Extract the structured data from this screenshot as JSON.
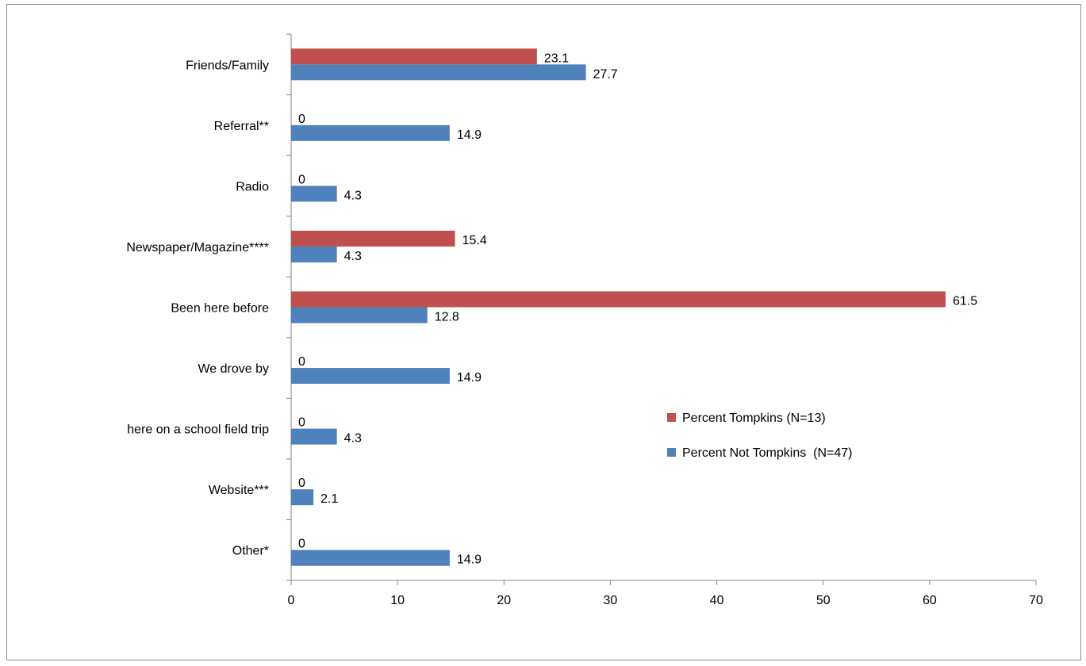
{
  "chart_data": {
    "type": "bar",
    "orientation": "horizontal",
    "title": "",
    "xlabel": "",
    "ylabel": "",
    "categories": [
      "Friends/Family",
      "Referral**",
      "Radio",
      "Newspaper/Magazine****",
      "Been here before",
      "We drove by",
      "here on a school field trip",
      "Website***",
      "Other*"
    ],
    "series": [
      {
        "name": "Percent Tompkins (N=13)",
        "color": "#c0504d",
        "values": [
          23.1,
          0,
          0,
          15.4,
          61.5,
          0,
          0,
          0,
          0
        ],
        "labels": [
          "23.1",
          "0",
          "0",
          "15.4",
          "61.5",
          "0",
          "0",
          "0",
          "0"
        ]
      },
      {
        "name": "Percent Not Tompkins  (N=47)",
        "color": "#4f81bd",
        "values": [
          27.7,
          14.9,
          4.3,
          4.3,
          12.8,
          14.9,
          4.3,
          2.1,
          14.9
        ],
        "labels": [
          "27.7",
          "14.9",
          "4.3",
          "4.3",
          "12.8",
          "14.9",
          "4.3",
          "2.1",
          "14.9"
        ]
      }
    ],
    "xlim": [
      0,
      70
    ],
    "xticks": [
      0,
      10,
      20,
      30,
      40,
      50,
      60,
      70
    ],
    "xtick_labels": [
      "0",
      "10",
      "20",
      "30",
      "40",
      "50",
      "60",
      "70"
    ],
    "grid": false,
    "legend": "right"
  }
}
